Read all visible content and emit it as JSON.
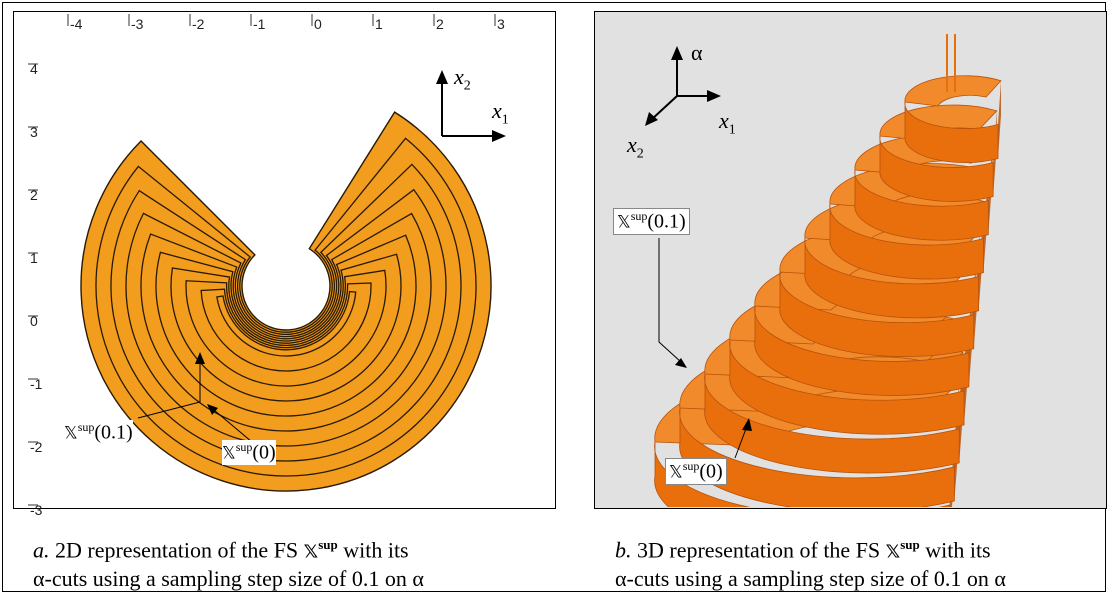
{
  "panel_a": {
    "x_ticks": [
      "-4",
      "-3",
      "-2",
      "-1",
      "0",
      "1",
      "2",
      "3"
    ],
    "y_ticks": [
      "4",
      "3",
      "2",
      "1",
      "0",
      "-1",
      "-2",
      "-3"
    ],
    "axis_x_label": "x",
    "axis_x_sub": "1",
    "axis_y_label": "x",
    "axis_y_sub": "2",
    "label_inner": {
      "prefix": "𝕏",
      "sup": "sup",
      "arg": "(0.1)"
    },
    "label_outer": {
      "prefix": "𝕏",
      "sup": "sup",
      "arg": "(0)"
    },
    "caption_letter": "a.",
    "caption_line1": " 2D representation of the FS ",
    "caption_symbol": "𝕏",
    "caption_symbol_sup": "sup",
    "caption_line1_end": " with its",
    "caption_line2": "α-cuts using a sampling step size of 0.1 on α"
  },
  "panel_b": {
    "axis_alpha_label": "α",
    "axis_x1_label": "x",
    "axis_x1_sub": "1",
    "axis_x2_label": "x",
    "axis_x2_sub": "2",
    "label_inner": {
      "prefix": "𝕏",
      "sup": "sup",
      "arg": "(0.1)"
    },
    "label_outer": {
      "prefix": "𝕏",
      "sup": "sup",
      "arg": "(0)"
    },
    "caption_letter": "b.",
    "caption_line1": " 3D representation of the FS ",
    "caption_symbol": "𝕏",
    "caption_symbol_sup": "sup",
    "caption_line1_end": " with its",
    "caption_line2": "α-cuts using a sampling step size of 0.1 on α"
  },
  "colors": {
    "fill_orange": "#f29d1e",
    "stroke_dark": "#2a1a05",
    "surface_orange": "#e86f0c",
    "surface_top": "#f08a2a",
    "surface_dark": "#b9520a",
    "background_b": "#e1e1e1"
  }
}
